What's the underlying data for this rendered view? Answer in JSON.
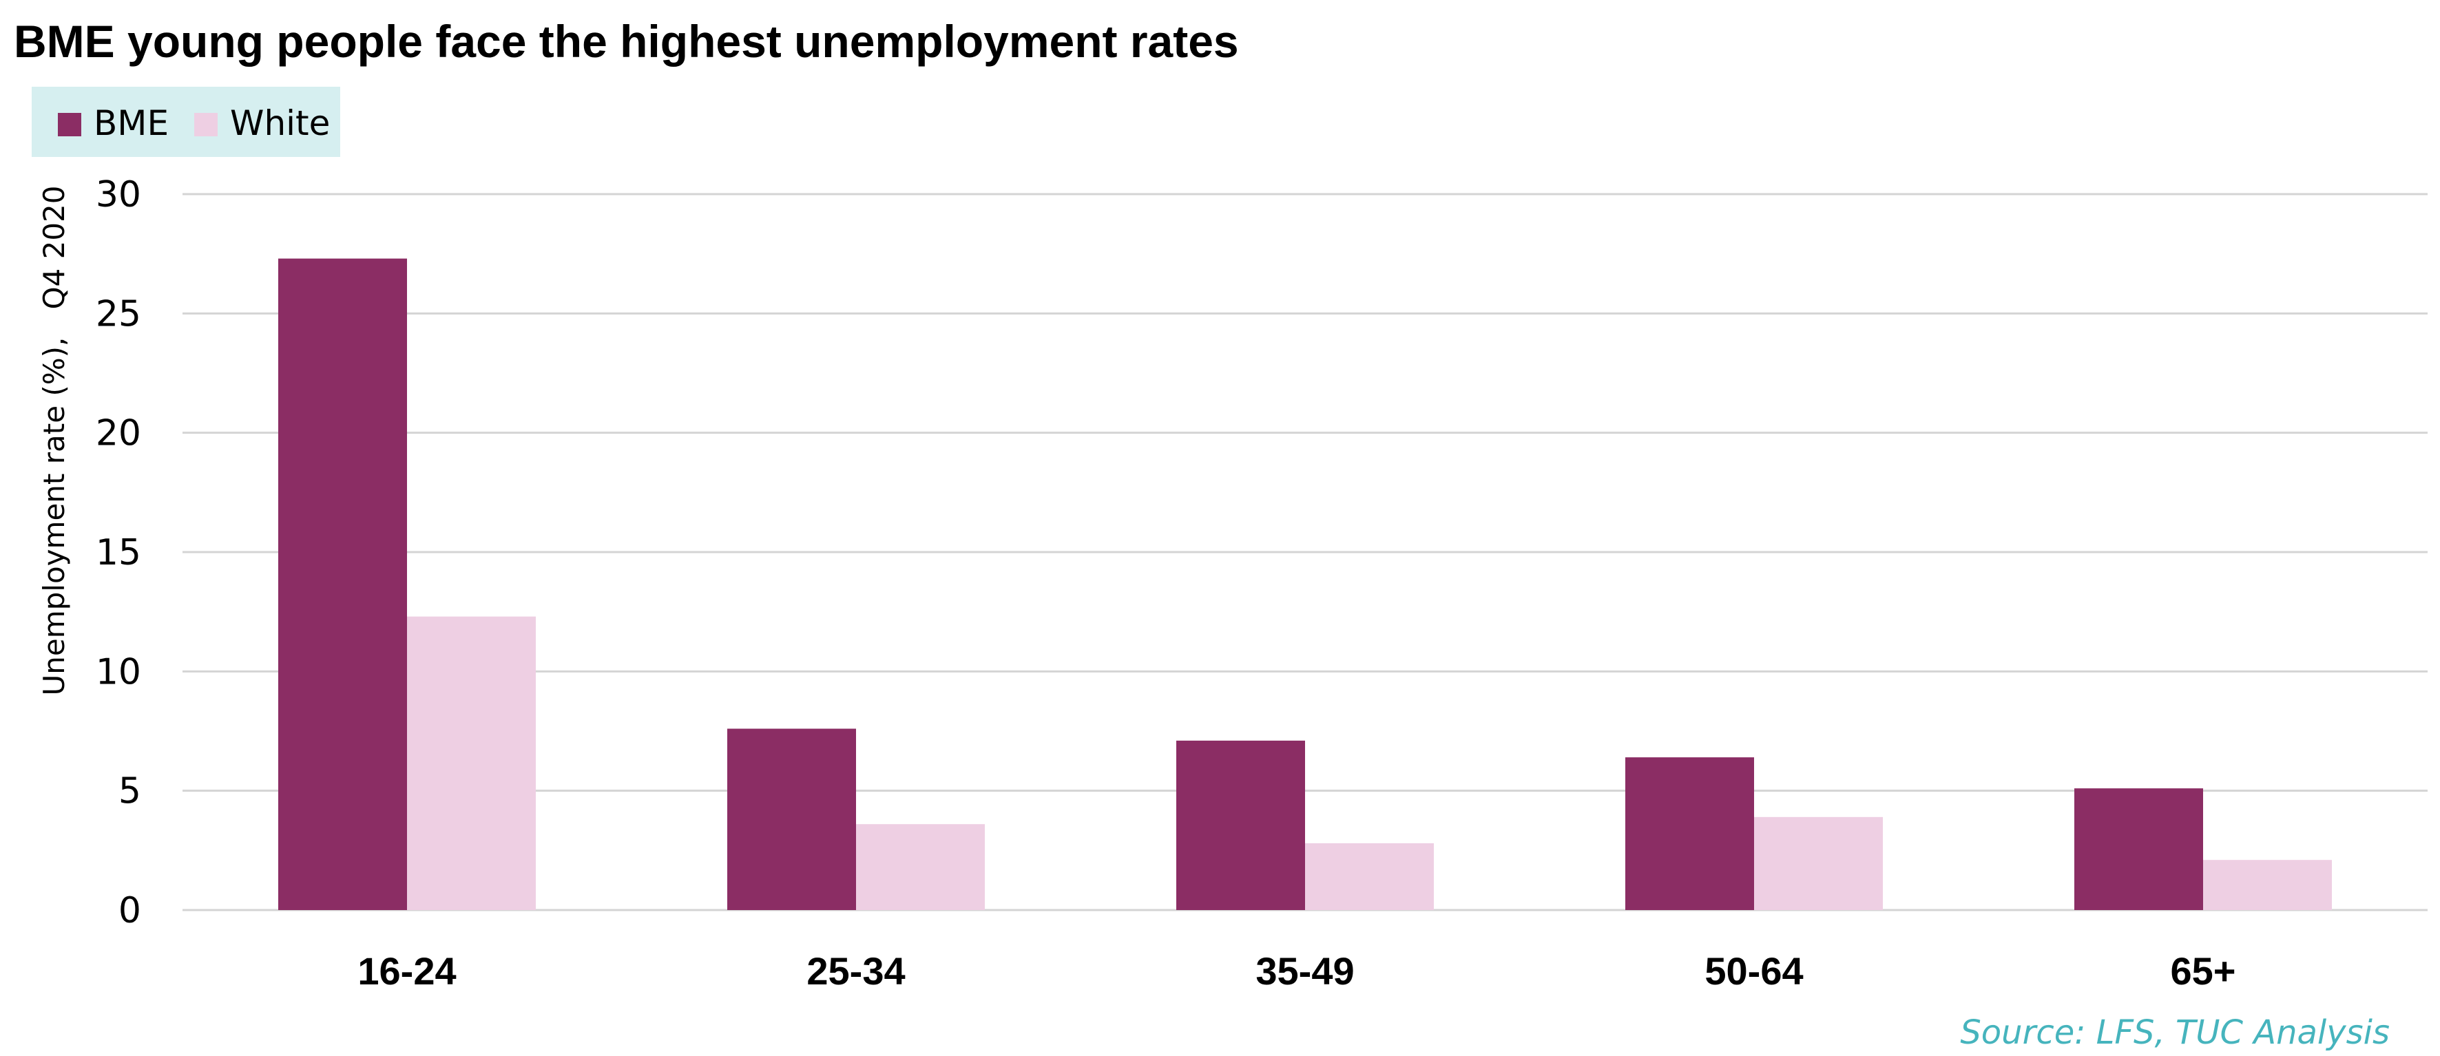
{
  "chart_data": {
    "type": "bar",
    "title": "BME young people face the highest unemployment rates",
    "ylabel": "Unemployment rate (%),   Q4 2020",
    "xlabel": "",
    "categories": [
      "16-24",
      "25-34",
      "35-49",
      "50-64",
      "65+"
    ],
    "series": [
      {
        "name": "BME",
        "color": "#8b2d64",
        "values": [
          27.3,
          7.6,
          7.1,
          6.4,
          5.1
        ]
      },
      {
        "name": "White",
        "color": "#eecfe3",
        "values": [
          12.3,
          3.6,
          2.8,
          3.9,
          2.1
        ]
      }
    ],
    "ylim": [
      0,
      30
    ],
    "yticks": [
      0,
      5,
      10,
      15,
      20,
      25,
      30
    ],
    "grid": true,
    "legend_position": "top-left",
    "legend_background": "#d6eff0",
    "gridline_color": "#d4d4d4",
    "source": "Source: LFS, TUC Analysis",
    "source_color": "#46b4bd"
  }
}
